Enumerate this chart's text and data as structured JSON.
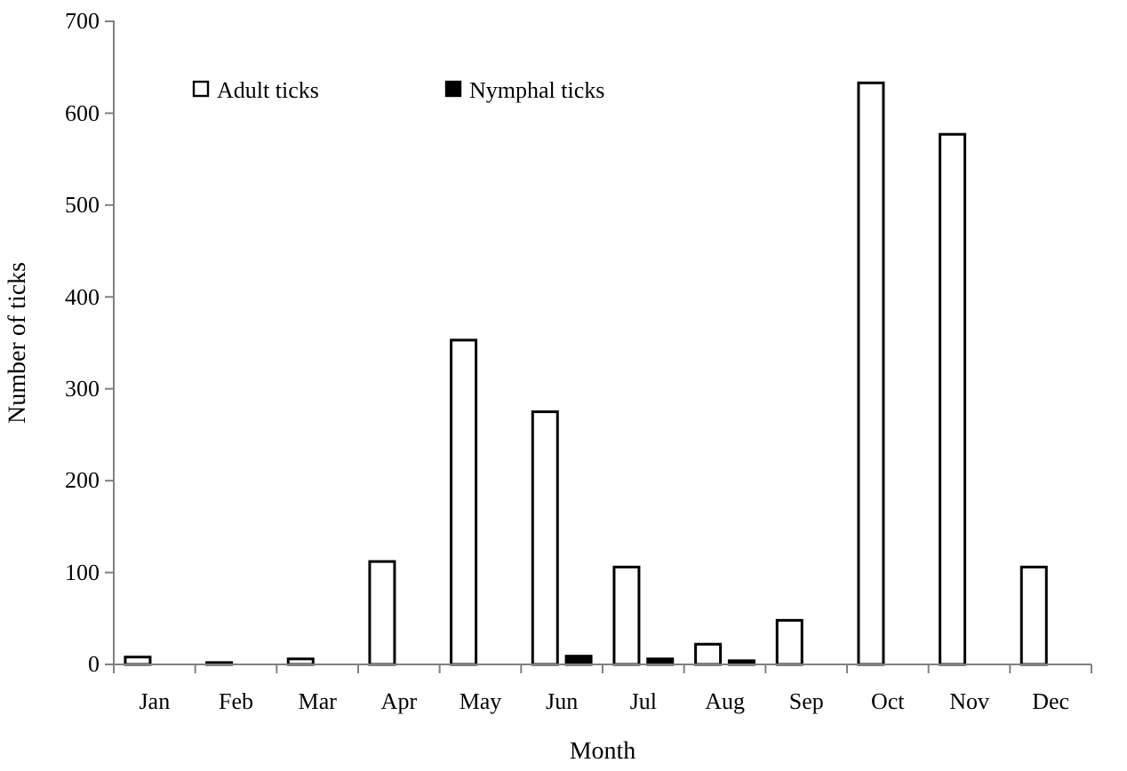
{
  "chart_data": {
    "type": "bar",
    "xlabel": "Month",
    "ylabel": "Number of ticks",
    "categories": [
      "Jan",
      "Feb",
      "Mar",
      "Apr",
      "May",
      "Jun",
      "Jul",
      "Aug",
      "Sep",
      "Oct",
      "Nov",
      "Dec"
    ],
    "series": [
      {
        "name": "Adult ticks",
        "color": "#ffffff",
        "values": [
          8,
          2,
          6,
          112,
          353,
          275,
          106,
          22,
          48,
          633,
          577,
          106
        ]
      },
      {
        "name": "Nymphal ticks",
        "color": "#000000",
        "values": [
          0,
          0,
          0,
          0,
          0,
          9,
          6,
          4,
          0,
          0,
          0,
          0
        ]
      }
    ],
    "ylim": [
      0,
      700
    ],
    "yticks": [
      0,
      100,
      200,
      300,
      400,
      500,
      600,
      700
    ],
    "grid": false,
    "legend": "top left"
  }
}
